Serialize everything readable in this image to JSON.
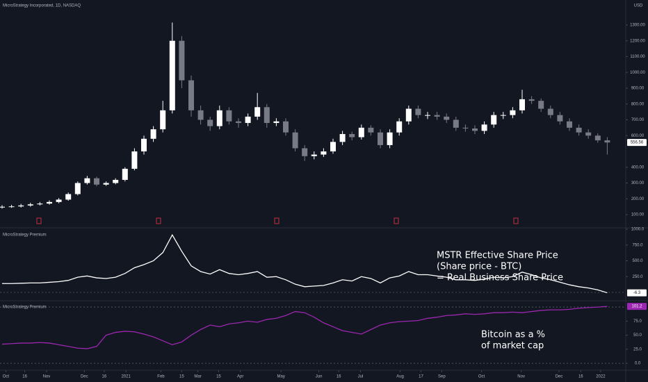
{
  "chart_data": [
    {
      "type": "candlestick",
      "title": "MicroStrategy Incorporated, 1D, NASDAQ",
      "currency": "USD",
      "up_color": "#ffffff",
      "down_color": "#787b86",
      "ylim": [
        21,
        1458
      ],
      "yticks": [
        {
          "value": 1300,
          "label": "1300.00"
        },
        {
          "value": 1200,
          "label": "1200.00"
        },
        {
          "value": 1100,
          "label": "1100.00"
        },
        {
          "value": 1000,
          "label": "1000.00"
        },
        {
          "value": 900,
          "label": "900.00"
        },
        {
          "value": 800,
          "label": "800.00"
        },
        {
          "value": 700,
          "label": "700.00"
        },
        {
          "value": 600,
          "label": "600.00"
        },
        {
          "value": 400,
          "label": "400.00"
        },
        {
          "value": 300,
          "label": "300.00"
        },
        {
          "value": 200,
          "label": "200.00"
        },
        {
          "value": 100,
          "label": "100.00"
        }
      ],
      "open": [
        145,
        150,
        152,
        158,
        165,
        170,
        180,
        195,
        230,
        300,
        330,
        290,
        300,
        320,
        390,
        500,
        580,
        640,
        760,
        1200,
        950,
        760,
        700,
        660,
        760,
        690,
        680,
        720,
        780,
        680,
        690,
        620,
        520,
        470,
        480,
        500,
        560,
        610,
        590,
        650,
        620,
        540,
        620,
        690,
        770,
        730,
        730,
        720,
        700,
        650,
        645,
        630,
        670,
        730,
        730,
        760,
        830,
        820,
        770,
        730,
        690,
        650,
        620,
        600,
        570
      ],
      "high": [
        160,
        162,
        168,
        175,
        180,
        190,
        205,
        240,
        310,
        345,
        340,
        310,
        330,
        400,
        520,
        600,
        660,
        820,
        1315,
        1230,
        980,
        790,
        720,
        790,
        780,
        710,
        740,
        870,
        800,
        710,
        710,
        640,
        540,
        500,
        520,
        580,
        630,
        625,
        670,
        665,
        640,
        640,
        710,
        790,
        790,
        750,
        750,
        740,
        720,
        670,
        665,
        690,
        750,
        750,
        780,
        890,
        850,
        835,
        790,
        750,
        710,
        670,
        640,
        615,
        590
      ],
      "low": [
        138,
        143,
        145,
        150,
        158,
        163,
        172,
        188,
        222,
        290,
        280,
        282,
        292,
        310,
        380,
        480,
        560,
        620,
        740,
        900,
        720,
        670,
        630,
        640,
        670,
        650,
        660,
        700,
        650,
        660,
        600,
        500,
        440,
        450,
        465,
        485,
        540,
        570,
        575,
        600,
        520,
        520,
        600,
        670,
        710,
        705,
        700,
        680,
        630,
        625,
        610,
        610,
        650,
        705,
        710,
        740,
        800,
        750,
        710,
        670,
        630,
        600,
        580,
        555,
        480
      ],
      "close": [
        150,
        152,
        158,
        165,
        170,
        180,
        195,
        230,
        300,
        330,
        290,
        300,
        320,
        390,
        500,
        580,
        640,
        760,
        1200,
        950,
        760,
        700,
        660,
        760,
        690,
        680,
        720,
        780,
        680,
        690,
        620,
        520,
        470,
        480,
        500,
        560,
        610,
        590,
        650,
        620,
        540,
        620,
        690,
        770,
        730,
        730,
        720,
        700,
        650,
        645,
        630,
        670,
        730,
        730,
        760,
        830,
        820,
        770,
        730,
        690,
        650,
        620,
        600,
        570,
        556.56
      ]
    },
    {
      "type": "line",
      "title": "MicroStrategy Premium",
      "color": "#ffffff",
      "annotation": [
        "MSTR Effective Share Price",
        "(Share price - BTC)",
        "= Real Business Share Price"
      ],
      "ylim": [
        -121,
        1000
      ],
      "yticks": [
        {
          "value": 1000,
          "label": "1000.0"
        },
        {
          "value": 750,
          "label": "750.0"
        },
        {
          "value": 500,
          "label": "500.0"
        },
        {
          "value": 250,
          "label": "250.0"
        }
      ],
      "hlines": [
        0
      ],
      "values": [
        140,
        140,
        145,
        150,
        150,
        160,
        170,
        190,
        240,
        260,
        230,
        220,
        240,
        300,
        390,
        440,
        500,
        630,
        910,
        650,
        420,
        330,
        290,
        360,
        300,
        280,
        300,
        330,
        240,
        250,
        200,
        130,
        90,
        100,
        110,
        150,
        200,
        180,
        250,
        220,
        150,
        230,
        260,
        330,
        280,
        280,
        260,
        240,
        200,
        200,
        190,
        210,
        240,
        230,
        250,
        320,
        280,
        230,
        200,
        160,
        120,
        90,
        70,
        40,
        -6.3
      ]
    },
    {
      "type": "line",
      "title": "MicroStrategy Premium",
      "color": "#9c27b0",
      "annotation": [
        "Bitcoin as a %",
        "of market cap"
      ],
      "ylim": [
        -11,
        110
      ],
      "yticks": [
        {
          "value": 75,
          "label": "75.0"
        },
        {
          "value": 50,
          "label": "50.0"
        },
        {
          "value": 25,
          "label": "25.0"
        },
        {
          "value": 0,
          "label": "0.0"
        }
      ],
      "hlines": [
        100,
        0
      ],
      "values": [
        34,
        35,
        36,
        36,
        37,
        36,
        33,
        30,
        27,
        26,
        30,
        50,
        55,
        57,
        56,
        52,
        47,
        40,
        33,
        38,
        50,
        60,
        68,
        65,
        70,
        72,
        75,
        73,
        78,
        80,
        85,
        92,
        90,
        82,
        72,
        65,
        58,
        55,
        52,
        60,
        68,
        72,
        74,
        75,
        76,
        80,
        82,
        85,
        86,
        88,
        87,
        88,
        90,
        90,
        91,
        90,
        92,
        94,
        95,
        95,
        96,
        98,
        99,
        100,
        101.2
      ],
      "xticks": [
        {
          "value": 0.4,
          "label": "Oct"
        },
        {
          "value": 2.4,
          "label": "16"
        },
        {
          "value": 4.7,
          "label": "Nov"
        },
        {
          "value": 8.7,
          "label": "Dec"
        },
        {
          "value": 10.8,
          "label": "16"
        },
        {
          "value": 13.1,
          "label": "2021"
        },
        {
          "value": 16.8,
          "label": "Feb"
        },
        {
          "value": 19.0,
          "label": "15"
        },
        {
          "value": 20.7,
          "label": "Mar"
        },
        {
          "value": 22.9,
          "label": "15"
        },
        {
          "value": 25.2,
          "label": "Apr"
        },
        {
          "value": 29.5,
          "label": "May"
        },
        {
          "value": 33.5,
          "label": "Jun"
        },
        {
          "value": 35.6,
          "label": "16"
        },
        {
          "value": 37.9,
          "label": "Jul"
        },
        {
          "value": 42.1,
          "label": "Aug"
        },
        {
          "value": 44.3,
          "label": "17"
        },
        {
          "value": 46.5,
          "label": "Sep"
        },
        {
          "value": 50.7,
          "label": "Oct"
        },
        {
          "value": 54.9,
          "label": "Nov"
        },
        {
          "value": 58.9,
          "label": "Dec"
        },
        {
          "value": 61.2,
          "label": "16"
        },
        {
          "value": 63.3,
          "label": "2022"
        }
      ]
    }
  ]
}
